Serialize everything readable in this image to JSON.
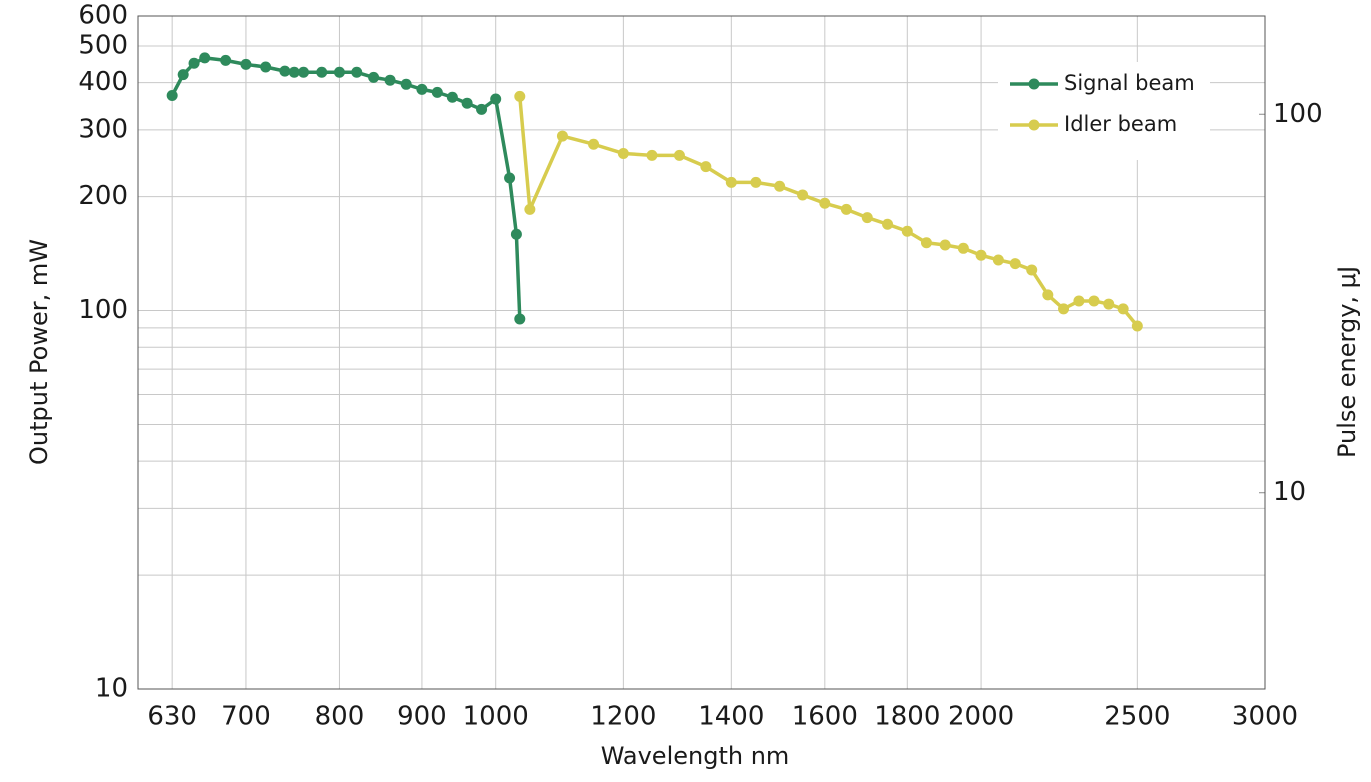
{
  "chart_data": {
    "type": "line",
    "x_label": "Wavelength  nm",
    "y_label": "Output Power, mW",
    "y2_label": "Pulse energy, μJ",
    "xlog": true,
    "ylog": true,
    "y2log": true,
    "grid": true,
    "legend": "upper right",
    "xlim": [
      600,
      3000
    ],
    "xticks": [
      630,
      700,
      800,
      900,
      1000,
      1200,
      1400,
      1600,
      1800,
      2000,
      2500,
      3000
    ],
    "ylim": [
      10,
      600
    ],
    "yticks": [
      10,
      100,
      200,
      300,
      400,
      500,
      600
    ],
    "yminor_grid": [
      20,
      30,
      40,
      50,
      60,
      70,
      80,
      90
    ],
    "y2lim": [
      3.03,
      181.8
    ],
    "y2ticks": [
      10,
      100
    ],
    "series": [
      {
        "name": "Signal beam",
        "color": "#2e8a5c",
        "x": [
          630,
          640,
          650,
          660,
          680,
          700,
          720,
          740,
          750,
          760,
          780,
          800,
          820,
          840,
          860,
          880,
          900,
          920,
          940,
          960,
          980,
          1000,
          1020,
          1030,
          1035
        ],
        "values": [
          370,
          420,
          450,
          465,
          458,
          447,
          440,
          429,
          426,
          426,
          426,
          426,
          426,
          413,
          406,
          396,
          384,
          377,
          366,
          353,
          340,
          362,
          224,
          159,
          95
        ]
      },
      {
        "name": "Idler beam",
        "color": "#d7cc4e",
        "x": [
          1035,
          1050,
          1100,
          1150,
          1200,
          1250,
          1300,
          1350,
          1400,
          1450,
          1500,
          1550,
          1600,
          1650,
          1700,
          1750,
          1800,
          1850,
          1900,
          1950,
          2000,
          2050,
          2100,
          2150,
          2200,
          2250,
          2300,
          2350,
          2400,
          2450,
          2500
        ],
        "values": [
          368,
          185,
          289,
          275,
          260,
          257,
          257,
          240,
          218,
          218,
          213,
          202,
          192,
          185,
          176,
          169,
          162,
          151,
          149,
          146,
          140,
          136,
          133,
          128,
          110,
          101,
          106,
          106,
          104,
          101,
          91
        ]
      }
    ]
  }
}
